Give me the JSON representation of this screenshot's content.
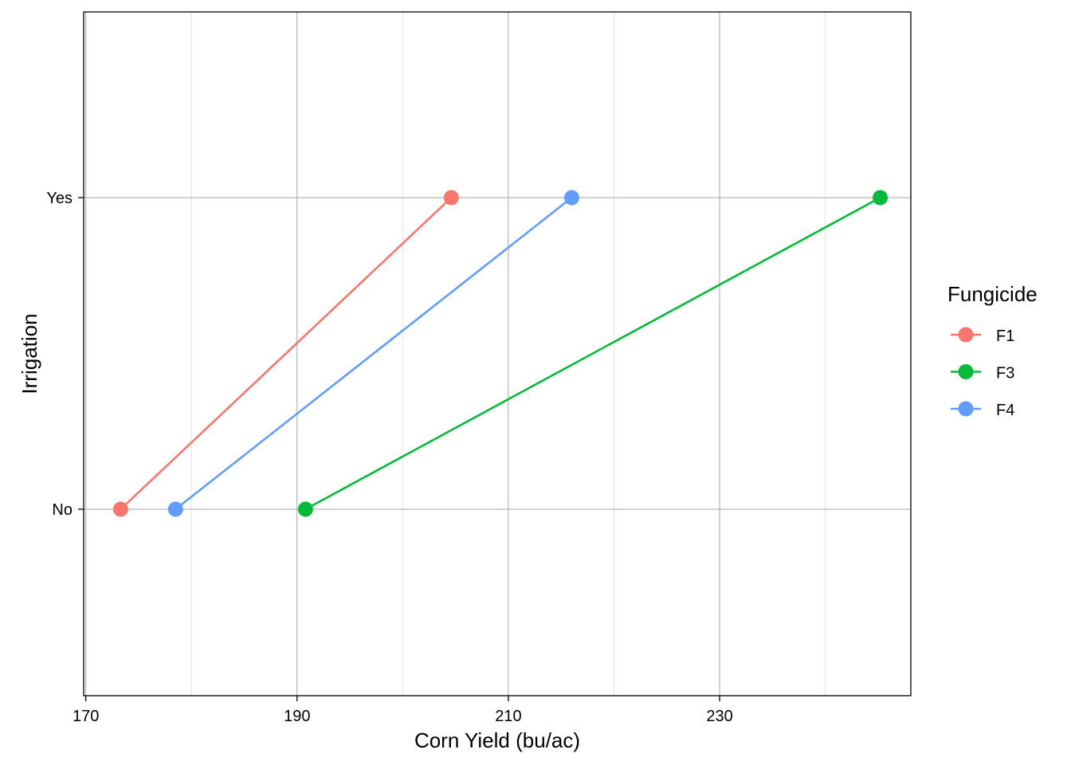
{
  "chart_data": {
    "type": "line",
    "title": "",
    "xlabel": "Corn Yield (bu/ac)",
    "ylabel": "Irrigation",
    "xlim": [
      169.8,
      248.1
    ],
    "x_ticks": [
      170,
      190,
      210,
      230
    ],
    "x_minor": [
      180,
      200,
      220,
      240
    ],
    "y_categories": [
      "No",
      "Yes"
    ],
    "grid": true,
    "legend": {
      "title": "Fungicide",
      "position": "right"
    },
    "series": [
      {
        "name": "F1",
        "color": "#F8766D",
        "points": [
          {
            "y": "No",
            "x": 173.3
          },
          {
            "y": "Yes",
            "x": 204.6
          }
        ]
      },
      {
        "name": "F3",
        "color": "#00BA38",
        "points": [
          {
            "y": "No",
            "x": 190.8
          },
          {
            "y": "Yes",
            "x": 245.2
          }
        ]
      },
      {
        "name": "F4",
        "color": "#619CFF",
        "points": [
          {
            "y": "No",
            "x": 178.5
          },
          {
            "y": "Yes",
            "x": 216.0
          }
        ]
      }
    ]
  }
}
